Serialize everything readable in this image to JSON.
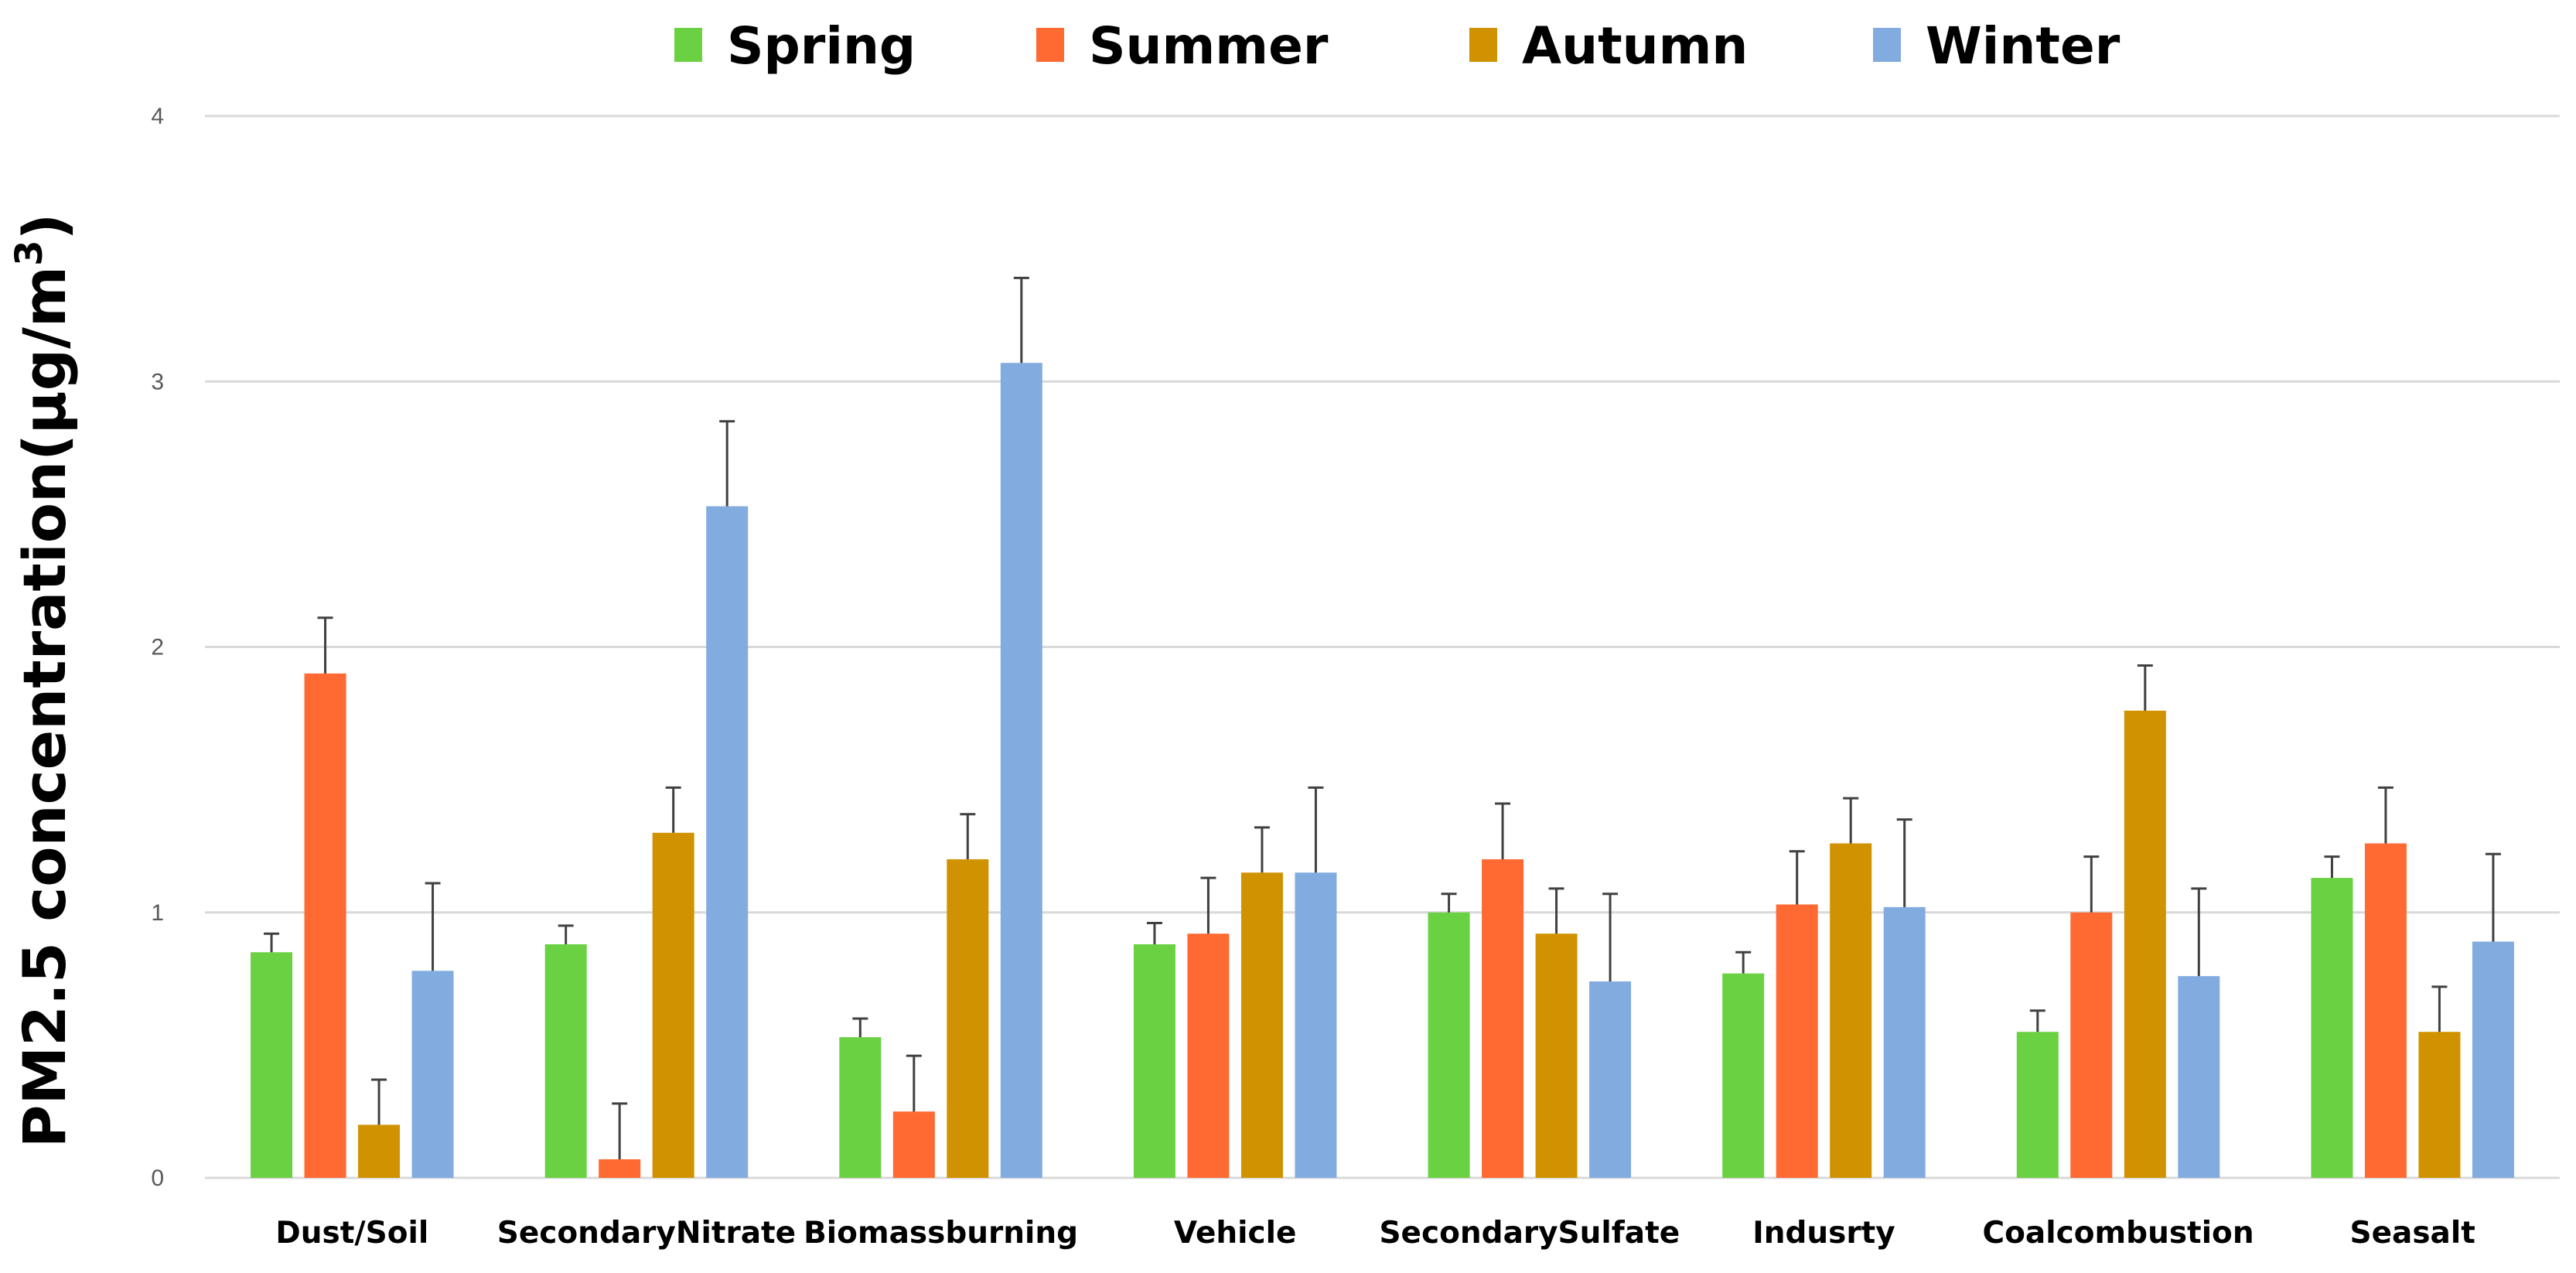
{
  "chart_data": {
    "type": "bar",
    "title": "",
    "xlabel": "",
    "ylabel": "PM2.5 concentration(µg/m",
    "ylabel_superscript": "3",
    "ylabel_suffix": ")",
    "ylim": [
      0,
      4
    ],
    "yticks": [
      "0",
      "1",
      "2",
      "3",
      "4"
    ],
    "grid": true,
    "legend_position": "top-center",
    "categories": [
      "Dust/Soil",
      "SecondaryNitrate",
      "Biomassburning",
      "Vehicle",
      "SecondarySulfate",
      "Indusrty",
      "Coalcombustion",
      "Seasalt"
    ],
    "series": [
      {
        "name": "Spring",
        "color": "#6ad142",
        "values": [
          0.85,
          0.88,
          0.53,
          0.88,
          1.0,
          0.77,
          0.55,
          1.13
        ],
        "errors": [
          0.07,
          0.07,
          0.07,
          0.08,
          0.07,
          0.08,
          0.08,
          0.08
        ]
      },
      {
        "name": "Summer",
        "color": "#ff6a33",
        "values": [
          1.9,
          0.07,
          0.25,
          0.92,
          1.2,
          1.03,
          1.0,
          1.26
        ],
        "errors": [
          0.21,
          0.21,
          0.21,
          0.21,
          0.21,
          0.2,
          0.21,
          0.21
        ]
      },
      {
        "name": "Autumn",
        "color": "#d09200",
        "values": [
          0.2,
          1.3,
          1.2,
          1.15,
          0.92,
          1.26,
          1.76,
          0.55
        ],
        "errors": [
          0.17,
          0.17,
          0.17,
          0.17,
          0.17,
          0.17,
          0.17,
          0.17
        ]
      },
      {
        "name": "Winter",
        "color": "#82ace0",
        "values": [
          0.78,
          2.53,
          3.07,
          1.15,
          0.74,
          1.02,
          0.76,
          0.89
        ],
        "errors": [
          0.33,
          0.32,
          0.32,
          0.32,
          0.33,
          0.33,
          0.33,
          0.33
        ]
      }
    ]
  }
}
